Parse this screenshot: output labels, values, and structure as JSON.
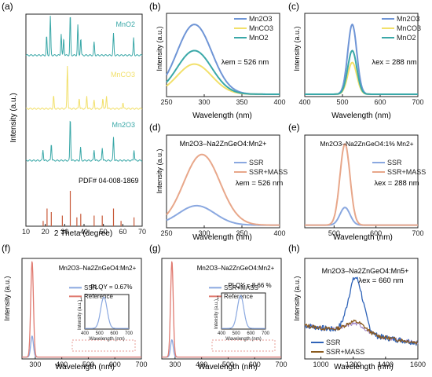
{
  "colors": {
    "Mn2O3": "#6f95d6",
    "MnCO3": "#f2e06a",
    "MnO2": "#3aa8a8",
    "SSR": "#8aa8e0",
    "SSR_MASS": "#e8a78a",
    "Reference": "#e07a70",
    "H_SSR": "#2f63b8",
    "H_MASS": "#8a5a1e",
    "A_red": "#c85a3a"
  },
  "panels": {
    "a": {
      "label": "(a)",
      "xlabel": "2 Theta (degree)",
      "ylabel": "Intensity (a.u.)",
      "xticks": [
        "10",
        "20",
        "30",
        "40",
        "50",
        "60",
        "70"
      ],
      "traces": [
        "MnO2",
        "MnCO3",
        "Mn2O3"
      ],
      "pdf": "PDF# 04-008-1869"
    },
    "b": {
      "label": "(b)",
      "xlabel": "Wavelength (nm)",
      "ylabel": "Intensity (a.u.)",
      "xticks": [
        "250",
        "300",
        "350",
        "400"
      ],
      "legend": [
        "Mn2O3",
        "MnCO3",
        "MnO2"
      ],
      "note": "λem = 526 nm"
    },
    "c": {
      "label": "(c)",
      "xlabel": "Wavelength (nm)",
      "ylabel": "Intensity (a.u.)",
      "xticks": [
        "400",
        "500",
        "600",
        "700"
      ],
      "legend": [
        "Mn2O3",
        "MnCO3",
        "MnO2"
      ],
      "note": "λex = 288 nm"
    },
    "d": {
      "label": "(d)",
      "title": "Mn2O3–Na2ZnGeO4:Mn2+",
      "xlabel": "Wavelength (nm)",
      "ylabel": "Intensity (a.u.)",
      "xticks": [
        "250",
        "300",
        "350",
        "400"
      ],
      "legend": [
        "SSR",
        "SSR+MASS"
      ],
      "note": "λem = 526 nm"
    },
    "e": {
      "label": "(e)",
      "title": "Mn2O3–Na2ZnGeO4:1% Mn2+",
      "xlabel": "Wavelength (nm)",
      "xticks": [
        "500",
        "600",
        "700"
      ],
      "legend": [
        "SSR",
        "SSR+MASS"
      ],
      "note": "λex = 288 nm"
    },
    "f": {
      "label": "(f)",
      "title": "Mn2O3–Na2ZnGeO4:Mn2+",
      "xlabel": "Wavelength (nm)",
      "ylabel": "Intensity (a.u.)",
      "xticks": [
        "300",
        "400",
        "500",
        "600",
        "700"
      ],
      "legend": [
        "SSR",
        "Reference"
      ],
      "plqy": "PLQY = 0.67%",
      "inset_ylabel": "Intensity (a.u.)",
      "inset_xlabel": "Wavelength (nm)",
      "inset_xticks": [
        "400",
        "500",
        "600",
        "700"
      ],
      "inset_ytick": "1"
    },
    "g": {
      "label": "(g)",
      "title": "Mn2O3–Na2ZnGeO4:Mn2+",
      "xlabel": "Wavelength (nm)",
      "xticks": [
        "300",
        "400",
        "500",
        "600",
        "700"
      ],
      "legend": [
        "SSR+MASS",
        "Reference"
      ],
      "plqy": "PLQY = 8.66 %",
      "inset_ylabel": "Intensity (a.u.)",
      "inset_xlabel": "Wavelength (nm)",
      "inset_xticks": [
        "400",
        "500",
        "600",
        "700"
      ],
      "inset_ytick": "1"
    },
    "h": {
      "label": "(h)",
      "title": "Mn2O3–Na2ZnGeO4:Mn5+",
      "xlabel": "Wavelength (nm)",
      "ylabel": "Intensity (a.u.)",
      "xticks": [
        "1000",
        "1200",
        "1400",
        "1600"
      ],
      "legend": [
        "SSR",
        "SSR+MASS"
      ],
      "note": "λex = 660 nm"
    }
  },
  "chart_data": [
    {
      "type": "line",
      "panel": "a",
      "xlabel": "2 Theta (degree)",
      "ylabel": "Intensity (a.u.)",
      "xlim": [
        10,
        70
      ],
      "series": [
        {
          "name": "MnO2",
          "peaks": [
            [
              20.7,
              0.45
            ],
            [
              22.6,
              0.9
            ],
            [
              28.2,
              0.5
            ],
            [
              29.5,
              0.4
            ],
            [
              32.9,
              0.95
            ],
            [
              36.8,
              0.7
            ],
            [
              38.3,
              0.4
            ],
            [
              45.2,
              0.3
            ],
            [
              55.2,
              0.5
            ],
            [
              65.6,
              0.4
            ]
          ]
        },
        {
          "name": "MnCO3",
          "peaks": [
            [
              24.3,
              0.3
            ],
            [
              31.4,
              1.0
            ],
            [
              37.5,
              0.25
            ],
            [
              41.4,
              0.3
            ],
            [
              45.2,
              0.2
            ],
            [
              49.7,
              0.25
            ],
            [
              51.6,
              0.3
            ],
            [
              60.1,
              0.15
            ]
          ]
        },
        {
          "name": "Mn2O3",
          "peaks": [
            [
              18.8,
              0.25
            ],
            [
              23.1,
              0.4
            ],
            [
              32.9,
              1.0
            ],
            [
              38.2,
              0.3
            ],
            [
              45.2,
              0.25
            ],
            [
              49.4,
              0.3
            ],
            [
              55.2,
              0.55
            ],
            [
              65.8,
              0.25
            ]
          ]
        },
        {
          "name": "PDF# 04-008-1869",
          "peaks": [
            [
              18.9,
              0.15
            ],
            [
              20.9,
              0.5
            ],
            [
              23.1,
              0.4
            ],
            [
              28.8,
              0.3
            ],
            [
              32.9,
              1.0
            ],
            [
              36.3,
              0.25
            ],
            [
              38.3,
              0.35
            ],
            [
              45.2,
              0.3
            ],
            [
              49.4,
              0.3
            ],
            [
              55.2,
              0.5
            ],
            [
              59.1,
              0.15
            ],
            [
              65.8,
              0.25
            ]
          ]
        }
      ]
    },
    {
      "type": "line",
      "panel": "b",
      "xlabel": "Wavelength (nm)",
      "ylabel": "Intensity (a.u.)",
      "xlim": [
        250,
        400
      ],
      "ylim": [
        0,
        1.05
      ],
      "series": [
        {
          "name": "Mn2O3",
          "center": 287,
          "height": 0.88
        },
        {
          "name": "MnCO3",
          "center": 287,
          "height": 0.38
        },
        {
          "name": "MnO2",
          "center": 287,
          "height": 0.55
        }
      ]
    },
    {
      "type": "line",
      "panel": "c",
      "xlabel": "Wavelength (nm)",
      "ylabel": "Intensity (a.u.)",
      "xlim": [
        400,
        700
      ],
      "ylim": [
        0,
        1.05
      ],
      "series": [
        {
          "name": "Mn2O3",
          "center": 526,
          "height": 0.88
        },
        {
          "name": "MnCO3",
          "center": 526,
          "height": 0.4
        },
        {
          "name": "MnO2",
          "center": 526,
          "height": 0.55
        }
      ]
    },
    {
      "type": "line",
      "panel": "d",
      "xlabel": "Wavelength (nm)",
      "ylabel": "Intensity (a.u.)",
      "xlim": [
        250,
        400
      ],
      "ylim": [
        0,
        1.05
      ],
      "series": [
        {
          "name": "SSR",
          "center": 290,
          "height": 0.22
        },
        {
          "name": "SSR+MASS",
          "center": 297,
          "height": 0.8
        }
      ]
    },
    {
      "type": "line",
      "panel": "e",
      "xlabel": "Wavelength (nm)",
      "xlim": [
        430,
        700
      ],
      "ylim": [
        0,
        1.05
      ],
      "series": [
        {
          "name": "SSR",
          "center": 526,
          "height": 0.2
        },
        {
          "name": "SSR+MASS",
          "center": 526,
          "height": 0.92
        }
      ]
    },
    {
      "type": "line",
      "panel": "f",
      "xlabel": "Wavelength (nm)",
      "ylabel": "Intensity (a.u.)",
      "xlim": [
        250,
        700
      ],
      "ylim": [
        0,
        1.05
      ],
      "series": [
        {
          "name": "SSR",
          "center": 288,
          "height": 0.22
        },
        {
          "name": "Reference",
          "center": 288,
          "height": 1.0
        }
      ],
      "plqy": 0.67
    },
    {
      "type": "line",
      "panel": "g",
      "xlabel": "Wavelength (nm)",
      "xlim": [
        250,
        700
      ],
      "ylim": [
        0,
        1.05
      ],
      "series": [
        {
          "name": "SSR+MASS",
          "center": 288,
          "height": 0.18
        },
        {
          "name": "Reference",
          "center": 288,
          "height": 1.0
        }
      ],
      "plqy": 8.66
    },
    {
      "type": "line",
      "panel": "h",
      "xlabel": "Wavelength (nm)",
      "ylabel": "Intensity (a.u.)",
      "xlim": [
        900,
        1600
      ],
      "series": [
        {
          "name": "SSR",
          "center": 1215,
          "height": 0.95
        },
        {
          "name": "SSR+MASS",
          "center": 1215,
          "height": 0.42
        }
      ]
    }
  ]
}
